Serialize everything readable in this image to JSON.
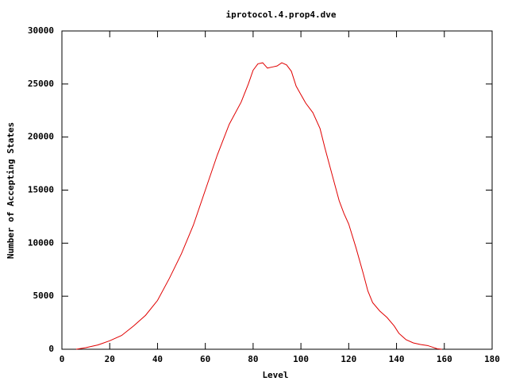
{
  "chart_data": {
    "type": "line",
    "title": "iprotocol.4.prop4.dve",
    "x_label": "Level",
    "y_label": "Number of Accepting States",
    "x": [
      6,
      10,
      15,
      20,
      25,
      30,
      35,
      40,
      45,
      50,
      55,
      60,
      65,
      70,
      75,
      78,
      80,
      82,
      84,
      86,
      88,
      90,
      92,
      94,
      96,
      98,
      100,
      102,
      105,
      108,
      110,
      113,
      116,
      118,
      120,
      123,
      126,
      128,
      130,
      133,
      136,
      139,
      141,
      144,
      147,
      150,
      153,
      155,
      157,
      159
    ],
    "series": [
      {
        "color": "#e00000",
        "values": [
          0,
          150,
          400,
          800,
          1300,
          2200,
          3200,
          4600,
          6700,
          9000,
          11700,
          15000,
          18300,
          21200,
          23300,
          25000,
          26300,
          26900,
          27000,
          26500,
          26600,
          26700,
          27000,
          26800,
          26200,
          24800,
          24000,
          23200,
          22300,
          20800,
          19000,
          16500,
          14000,
          12800,
          11800,
          9600,
          7200,
          5500,
          4400,
          3600,
          3000,
          2200,
          1500,
          900,
          600,
          450,
          350,
          200,
          50,
          0
        ]
      }
    ],
    "xlim": [
      0,
      180
    ],
    "xticks": [
      0,
      20,
      40,
      60,
      80,
      100,
      120,
      140,
      160,
      180
    ],
    "ylim": [
      0,
      30000
    ],
    "yticks": [
      0,
      5000,
      10000,
      15000,
      20000,
      25000,
      30000
    ],
    "grid": false
  }
}
